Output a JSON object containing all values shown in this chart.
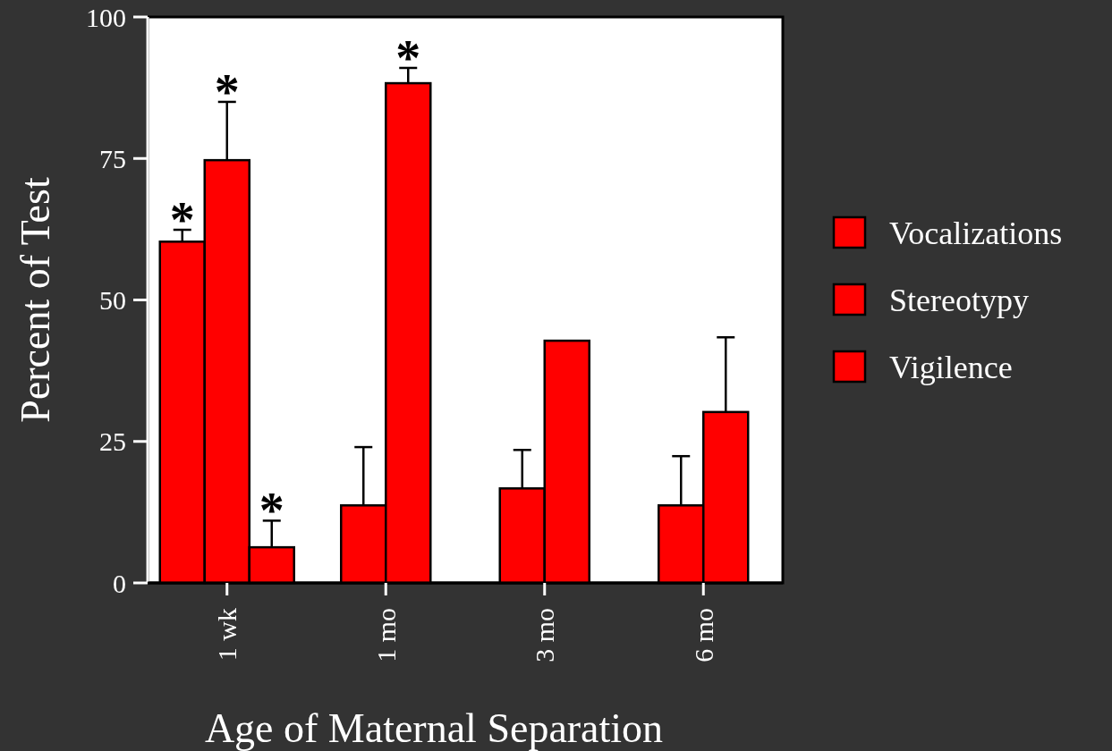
{
  "chart_data": {
    "type": "bar",
    "xlabel": "Age of Maternal Separation",
    "ylabel": "Percent of Test",
    "categories": [
      "1 wk",
      "1 mo",
      "3 mo",
      "6 mo"
    ],
    "series": [
      {
        "name": "Vocalizations",
        "color": "#ff0000",
        "values": [
          60.3,
          13.7,
          16.7,
          13.7
        ],
        "errors": [
          [
            60.3,
            62.4
          ],
          [
            13.7,
            24
          ],
          [
            16.7,
            23.5
          ],
          [
            13.7,
            22.4
          ]
        ]
      },
      {
        "name": "Stereotypy",
        "color": "#ff0000",
        "values": [
          74.7,
          null,
          null,
          null
        ],
        "errors": [
          [
            74.7,
            85
          ],
          null,
          null,
          null
        ]
      },
      {
        "name": "Vigilence",
        "color": "#ff0000",
        "values": [
          6.3,
          88.3,
          42.8,
          30.2
        ],
        "errors": [
          [
            6.3,
            11
          ],
          [
            88.3,
            91
          ],
          null,
          [
            30.2,
            43.4
          ]
        ]
      }
    ],
    "annotations": [
      "*",
      "*",
      "*",
      "*"
    ],
    "ylim": [
      0,
      100
    ],
    "yticks": [
      0,
      25,
      50,
      75,
      100
    ],
    "grid": false,
    "legend": "right"
  }
}
